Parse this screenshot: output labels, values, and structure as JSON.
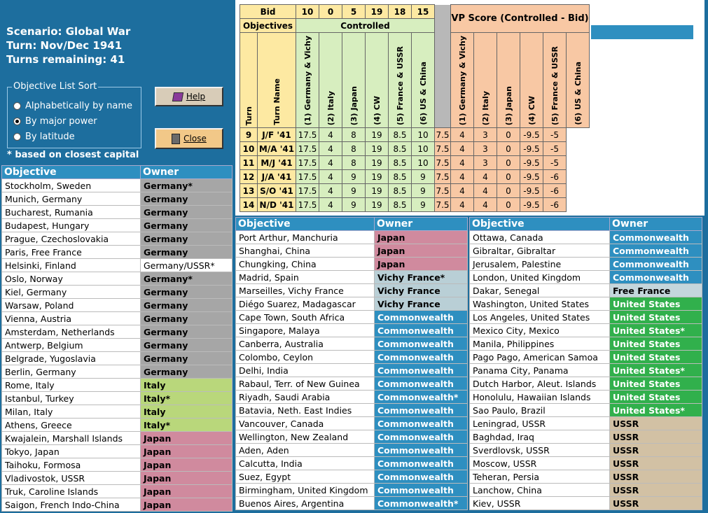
{
  "header": {
    "scenario": "Scenario: Global War",
    "turn": "Turn: Nov/Dec 1941",
    "turns_remaining": "Turns remaining: 41"
  },
  "sort": {
    "legend": "Objective List Sort",
    "options": [
      "Alphabetically by name",
      "By major power",
      "By latitude"
    ],
    "selected": 1
  },
  "buttons": {
    "help": "Help",
    "close": "Close"
  },
  "note": "* based on closest capital",
  "score": {
    "bid_label": "Bid",
    "bids": [
      "10",
      "0",
      "5",
      "19",
      "18",
      "15"
    ],
    "objectives_label": "Objectives",
    "controlled_label": "Controlled",
    "vp_label": "VP Score (Controlled - Bid)",
    "col_turn": "Turn",
    "col_turn_name": "Turn Name",
    "powers": [
      "(1) Germany & Vichy",
      "(2) Italy",
      "(3) Japan",
      "(4) CW",
      "(5) France & USSR",
      "(6) US & China"
    ],
    "rows": [
      {
        "turn": "9",
        "name": "J/F '41",
        "controlled": [
          "17.5",
          "4",
          "8",
          "19",
          "8.5",
          "10"
        ],
        "vp": [
          "7.5",
          "4",
          "3",
          "0",
          "-9.5",
          "-5"
        ]
      },
      {
        "turn": "10",
        "name": "M/A '41",
        "controlled": [
          "17.5",
          "4",
          "8",
          "19",
          "8.5",
          "10"
        ],
        "vp": [
          "7.5",
          "4",
          "3",
          "0",
          "-9.5",
          "-5"
        ]
      },
      {
        "turn": "11",
        "name": "M/J '41",
        "controlled": [
          "17.5",
          "4",
          "8",
          "19",
          "8.5",
          "10"
        ],
        "vp": [
          "7.5",
          "4",
          "3",
          "0",
          "-9.5",
          "-5"
        ]
      },
      {
        "turn": "12",
        "name": "J/A '41",
        "controlled": [
          "17.5",
          "4",
          "9",
          "19",
          "8.5",
          "9"
        ],
        "vp": [
          "7.5",
          "4",
          "4",
          "0",
          "-9.5",
          "-6"
        ]
      },
      {
        "turn": "13",
        "name": "S/O '41",
        "controlled": [
          "17.5",
          "4",
          "9",
          "19",
          "8.5",
          "9"
        ],
        "vp": [
          "7.5",
          "4",
          "4",
          "0",
          "-9.5",
          "-6"
        ]
      },
      {
        "turn": "14",
        "name": "N/D '41",
        "controlled": [
          "17.5",
          "4",
          "9",
          "19",
          "8.5",
          "9"
        ],
        "vp": [
          "7.5",
          "4",
          "4",
          "0",
          "-9.5",
          "-6"
        ]
      }
    ]
  },
  "list_headers": {
    "objective": "Objective",
    "owner": "Owner"
  },
  "lists": [
    [
      {
        "o": "Stockholm, Sweden",
        "w": "Germany*",
        "c": "germany"
      },
      {
        "o": "Munich, Germany",
        "w": "Germany",
        "c": "germany"
      },
      {
        "o": "Bucharest, Rumania",
        "w": "Germany",
        "c": "germany"
      },
      {
        "o": "Budapest, Hungary",
        "w": "Germany",
        "c": "germany"
      },
      {
        "o": "Prague, Czechoslovakia",
        "w": "Germany",
        "c": "germany"
      },
      {
        "o": "Paris, Free France",
        "w": "Germany",
        "c": "germany"
      },
      {
        "o": "Helsinki, Finland",
        "w": "Germany/USSR*",
        "c": "germany-ussr"
      },
      {
        "o": "Oslo, Norway",
        "w": "Germany*",
        "c": "germany"
      },
      {
        "o": "Kiel, Germany",
        "w": "Germany",
        "c": "germany"
      },
      {
        "o": "Warsaw, Poland",
        "w": "Germany",
        "c": "germany"
      },
      {
        "o": "Vienna, Austria",
        "w": "Germany",
        "c": "germany"
      },
      {
        "o": "Amsterdam, Netherlands",
        "w": "Germany",
        "c": "germany"
      },
      {
        "o": "Antwerp, Belgium",
        "w": "Germany",
        "c": "germany"
      },
      {
        "o": "Belgrade, Yugoslavia",
        "w": "Germany",
        "c": "germany"
      },
      {
        "o": "Berlin, Germany",
        "w": "Germany",
        "c": "germany"
      },
      {
        "o": "Rome, Italy",
        "w": "Italy",
        "c": "italy"
      },
      {
        "o": "Istanbul, Turkey",
        "w": "Italy*",
        "c": "italy"
      },
      {
        "o": "Milan, Italy",
        "w": "Italy",
        "c": "italy"
      },
      {
        "o": "Athens, Greece",
        "w": "Italy*",
        "c": "italy"
      },
      {
        "o": "Kwajalein, Marshall Islands",
        "w": "Japan",
        "c": "japan"
      },
      {
        "o": "Tokyo, Japan",
        "w": "Japan",
        "c": "japan"
      },
      {
        "o": "Taihoku, Formosa",
        "w": "Japan",
        "c": "japan"
      },
      {
        "o": "Vladivostok, USSR",
        "w": "Japan",
        "c": "japan"
      },
      {
        "o": "Truk, Caroline Islands",
        "w": "Japan",
        "c": "japan"
      },
      {
        "o": "Saigon, French Indo-China",
        "w": "Japan",
        "c": "japan"
      }
    ],
    [
      {
        "o": "Port Arthur, Manchuria",
        "w": "Japan",
        "c": "japan"
      },
      {
        "o": "Shanghai, China",
        "w": "Japan",
        "c": "japan"
      },
      {
        "o": "Chungking, China",
        "w": "Japan",
        "c": "japan"
      },
      {
        "o": "Madrid, Spain",
        "w": "Vichy France*",
        "c": "vichy"
      },
      {
        "o": "Marseilles, Vichy France",
        "w": "Vichy France",
        "c": "vichy"
      },
      {
        "o": "Diégo Suarez, Madagascar",
        "w": "Vichy France",
        "c": "vichy"
      },
      {
        "o": "Cape Town, South Africa",
        "w": "Commonwealth",
        "c": "cw"
      },
      {
        "o": "Singapore, Malaya",
        "w": "Commonwealth",
        "c": "cw"
      },
      {
        "o": "Canberra, Australia",
        "w": "Commonwealth",
        "c": "cw"
      },
      {
        "o": "Colombo, Ceylon",
        "w": "Commonwealth",
        "c": "cw"
      },
      {
        "o": "Delhi, India",
        "w": "Commonwealth",
        "c": "cw"
      },
      {
        "o": "Rabaul, Terr. of New Guinea",
        "w": "Commonwealth",
        "c": "cw"
      },
      {
        "o": "Riyadh, Saudi Arabia",
        "w": "Commonwealth*",
        "c": "cw"
      },
      {
        "o": "Batavia, Neth. East Indies",
        "w": "Commonwealth",
        "c": "cw"
      },
      {
        "o": "Vancouver, Canada",
        "w": "Commonwealth",
        "c": "cw"
      },
      {
        "o": "Wellington, New Zealand",
        "w": "Commonwealth",
        "c": "cw"
      },
      {
        "o": "Aden, Aden",
        "w": "Commonwealth",
        "c": "cw"
      },
      {
        "o": "Calcutta, India",
        "w": "Commonwealth",
        "c": "cw"
      },
      {
        "o": "Suez, Egypt",
        "w": "Commonwealth",
        "c": "cw"
      },
      {
        "o": "Birmingham, United Kingdom",
        "w": "Commonwealth",
        "c": "cw"
      },
      {
        "o": "Buenos Aires, Argentina",
        "w": "Commonwealth*",
        "c": "cw"
      }
    ],
    [
      {
        "o": "Ottawa, Canada",
        "w": "Commonwealth",
        "c": "cw"
      },
      {
        "o": "Gibraltar, Gibraltar",
        "w": "Commonwealth",
        "c": "cw"
      },
      {
        "o": "Jerusalem, Palestine",
        "w": "Commonwealth",
        "c": "cw"
      },
      {
        "o": "London, United Kingdom",
        "w": "Commonwealth",
        "c": "cw"
      },
      {
        "o": "Dakar, Senegal",
        "w": "Free France",
        "c": "ff"
      },
      {
        "o": "Washington, United States",
        "w": "United States",
        "c": "us"
      },
      {
        "o": "Los Angeles, United States",
        "w": "United States",
        "c": "us"
      },
      {
        "o": "Mexico City, Mexico",
        "w": "United States*",
        "c": "us"
      },
      {
        "o": "Manila, Philippines",
        "w": "United States",
        "c": "us"
      },
      {
        "o": "Pago Pago, American Samoa",
        "w": "United States",
        "c": "us"
      },
      {
        "o": "Panama City, Panama",
        "w": "United States*",
        "c": "us"
      },
      {
        "o": "Dutch Harbor, Aleut. Islands",
        "w": "United States",
        "c": "us"
      },
      {
        "o": "Honolulu, Hawaiian Islands",
        "w": "United States",
        "c": "us"
      },
      {
        "o": "Sao Paulo, Brazil",
        "w": "United States*",
        "c": "us"
      },
      {
        "o": "Leningrad, USSR",
        "w": "USSR",
        "c": "ussr"
      },
      {
        "o": "Baghdad, Iraq",
        "w": "USSR",
        "c": "ussr"
      },
      {
        "o": "Sverdlovsk, USSR",
        "w": "USSR",
        "c": "ussr"
      },
      {
        "o": "Moscow, USSR",
        "w": "USSR",
        "c": "ussr"
      },
      {
        "o": "Teheran, Persia",
        "w": "USSR",
        "c": "ussr"
      },
      {
        "o": "Lanchow, China",
        "w": "USSR",
        "c": "ussr"
      },
      {
        "o": "Kiev, USSR",
        "w": "USSR",
        "c": "ussr"
      }
    ]
  ]
}
